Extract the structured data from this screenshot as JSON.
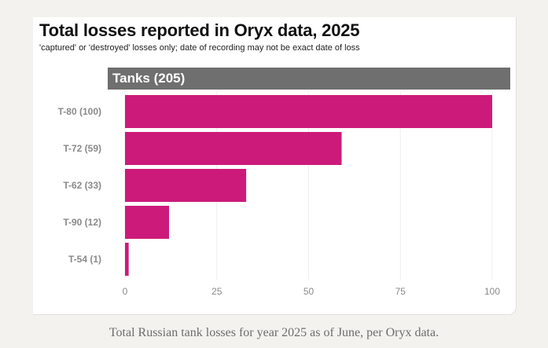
{
  "header": {
    "title": "Total losses reported in Oryx data, 2025",
    "subtitle": "'captured' or 'destroyed' losses only; date of recording may not be exact date of loss"
  },
  "panel": {
    "label": "Tanks (205)"
  },
  "caption": "Total Russian tank losses for year 2025 as of June, per Oryx data.",
  "colors": {
    "bar": "#cc1a7a",
    "panel_header": "#6f6f6f",
    "grid": "#eeeeee",
    "tick_text": "#8a8a8a"
  },
  "chart_data": {
    "type": "bar",
    "orientation": "horizontal",
    "title": "Total losses reported in Oryx data, 2025",
    "subtitle": "'captured' or 'destroyed' losses only; date of recording may not be exact date of loss",
    "panel_title": "Tanks (205)",
    "categories": [
      "T-80 (100)",
      "T-72 (59)",
      "T-62 (33)",
      "T-90 (12)",
      "T-54 (1)"
    ],
    "values": [
      100,
      59,
      33,
      12,
      1
    ],
    "xlim": [
      0,
      100
    ],
    "xticks": [
      0,
      25,
      50,
      75,
      100
    ],
    "grid": true,
    "legend": "none"
  }
}
